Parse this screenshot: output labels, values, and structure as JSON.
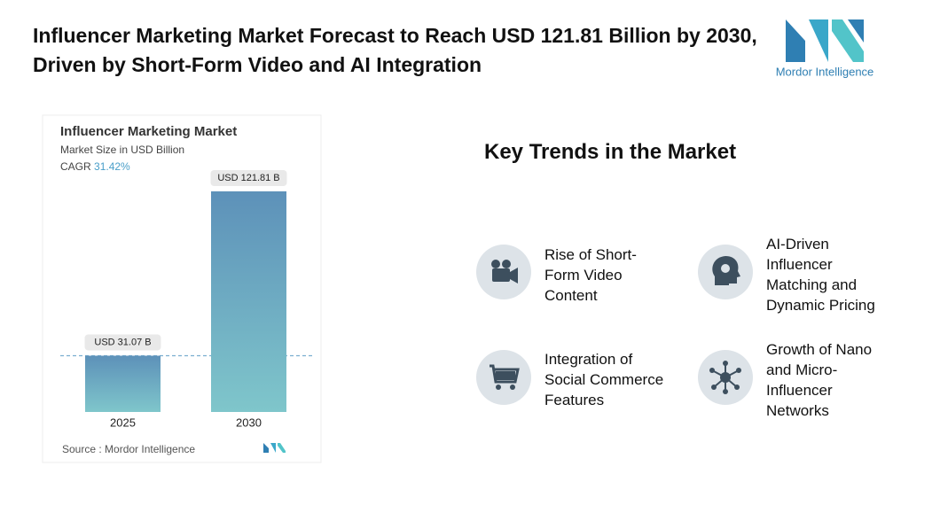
{
  "header": {
    "title": "Influencer Marketing Market Forecast to Reach USD 121.81 Billion by 2030, Driven by Short-Form Video and AI Integration",
    "logo": "Mordor Intelligence"
  },
  "chart_data": {
    "type": "bar",
    "title": "Influencer Marketing Market",
    "subtitle": "Market Size in USD Billion",
    "cagr_label": "CAGR",
    "cagr": "31.42%",
    "categories": [
      "2025",
      "2030"
    ],
    "values": [
      31.07,
      121.81
    ],
    "value_labels": [
      "USD 31.07 B",
      "USD 121.81 B"
    ],
    "color": "#6aa7c2",
    "source": "Source :  Mordor Intelligence"
  },
  "key_trends": {
    "title": "Key Trends in the Market",
    "items": [
      "Rise of Short-Form Video Content",
      "AI-Driven Influencer Matching and Dynamic Pricing",
      "Integration of Social Commerce Features",
      "Growth of Nano and Micro-Influencer Networks"
    ]
  }
}
